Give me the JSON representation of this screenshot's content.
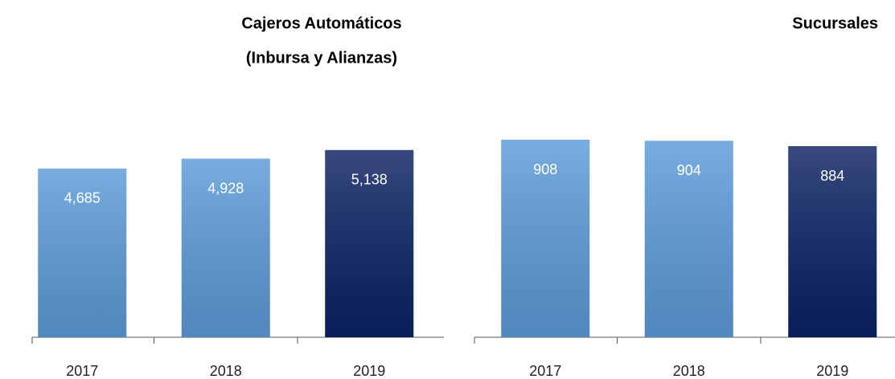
{
  "chart_data": [
    {
      "type": "bar",
      "title": [
        "Cajeros Automáticos",
        "(Inbursa y Alianzas)"
      ],
      "categories": [
        "2017",
        "2018",
        "2019"
      ],
      "values": [
        4685,
        4928,
        5138
      ],
      "value_labels": [
        "4,685",
        "4,928",
        "5,138"
      ],
      "colors": [
        "#5b9bd9",
        "#5b9bd9",
        "#0b2164"
      ],
      "ylim": [
        550,
        5470
      ]
    },
    {
      "type": "bar",
      "title": [
        "Sucursales"
      ],
      "categories": [
        "2017",
        "2018",
        "2019"
      ],
      "values": [
        908,
        904,
        884
      ],
      "colors": [
        "#5b9bd9",
        "#5b9bd9",
        "#0b2164"
      ],
      "ylim": [
        170,
        920
      ]
    }
  ]
}
